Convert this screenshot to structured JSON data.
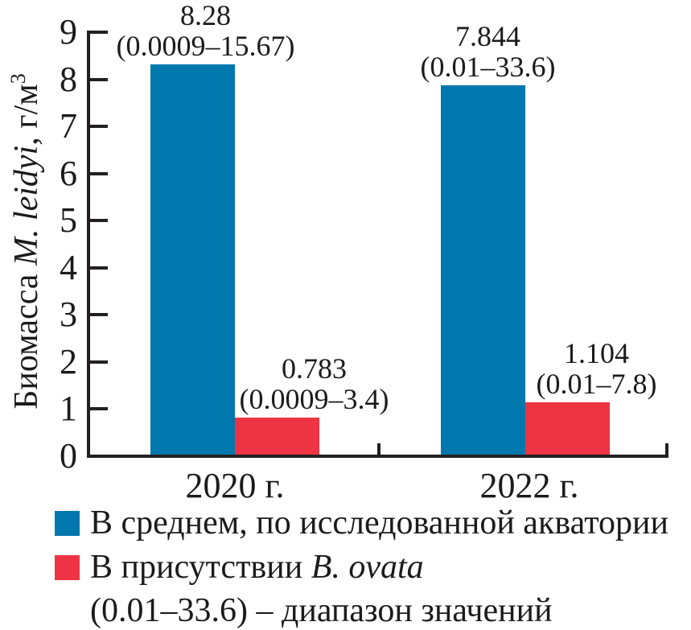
{
  "chart_data": {
    "type": "bar",
    "categories": [
      "2020 г.",
      "2022 г."
    ],
    "series": [
      {
        "key": "average",
        "name": "В среднем, по исследованной акватории",
        "color": "#0077ad",
        "values": [
          8.28,
          7.844
        ],
        "value_labels": [
          "8.28",
          "7.844"
        ],
        "range_labels": [
          "(0.0009–15.67)",
          "(0.01–33.6)"
        ]
      },
      {
        "key": "ovata",
        "name": "В присутствии B. ovata",
        "name_prefix": "В присутствии ",
        "name_italic": "B. ovata",
        "color": "#ee3444",
        "values": [
          0.783,
          1.104
        ],
        "value_labels": [
          "0.783",
          "1.104"
        ],
        "range_labels": [
          "(0.0009–3.4)",
          "(0.01–7.8)"
        ]
      }
    ],
    "ylabel": "Биомасса M. leidyi, г/м³",
    "ylabel_parts": {
      "prefix": "Биомасса ",
      "italic": "M. leidyi",
      "suffix": ", г/м",
      "sup": "3"
    },
    "ylim": [
      0,
      9
    ],
    "ytick_labels": [
      "0",
      "1",
      "2",
      "3",
      "4",
      "5",
      "6",
      "7",
      "8",
      "9"
    ],
    "grid": false,
    "legend_position": "bottom-left",
    "legend_note": "(0.01–33.6) – диапазон значений"
  }
}
